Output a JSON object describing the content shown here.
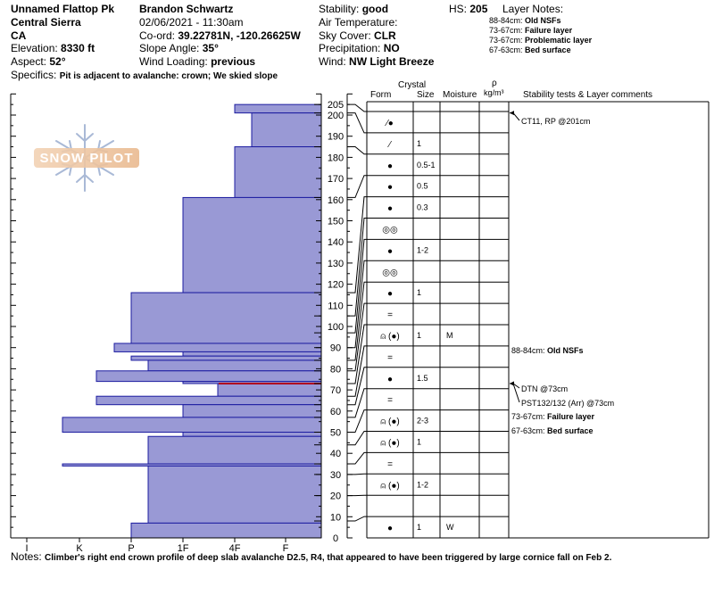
{
  "header": {
    "location": "Unnamed Flattop Pk",
    "range": "Central Sierra",
    "state": "CA",
    "elevation_label": "Elevation:",
    "elevation_value": "8330 ft",
    "aspect_label": "Aspect:",
    "aspect_value": "52°",
    "observer": "Brandon Schwartz",
    "datetime": "02/06/2021 - 11:30am",
    "coord_label": "Co-ord:",
    "coord_value": "39.22781N, -120.26625W",
    "slope_label": "Slope Angle:",
    "slope_value": "35°",
    "wind_loading_label": "Wind Loading:",
    "wind_loading_value": "previous",
    "stability_label": "Stability:",
    "stability_value": "good",
    "hs_label": "HS:",
    "hs_value": "205",
    "air_temp_label": "Air Temperature:",
    "sky_label": "Sky Cover:",
    "sky_value": "CLR",
    "precip_label": "Precipitation:",
    "precip_value": "NO",
    "wind_label": "Wind:",
    "wind_value": "NW Light Breeze",
    "specifics_label": "Specifics:",
    "specifics_value": "Pit is adjacent to avalanche: crown; We skied slope",
    "layer_notes_label": "Layer Notes:",
    "layer_notes": [
      {
        "range": "88-84cm:",
        "text": "Old NSFs"
      },
      {
        "range": "73-67cm:",
        "text": "Failure layer"
      },
      {
        "range": "73-67cm:",
        "text": "Problematic layer"
      },
      {
        "range": "67-63cm:",
        "text": "Bed surface"
      }
    ]
  },
  "column_headers": {
    "crystal": "Crystal",
    "form": "Form",
    "size": "Size",
    "moisture": "Moisture",
    "rho": "ρ",
    "density": "kg/m³",
    "stability": "Stability tests & Layer comments"
  },
  "watermark": "SNOW PILOT",
  "notes_label": "Notes:",
  "notes_value": "Climber's right end crown profile of deep slab avalanche D2.5, R4, that appeared to have been triggered by large cornice fall on Feb 2.",
  "colors": {
    "bar_fill": "#9999d5",
    "bar_stroke": "#1c1ca0",
    "failure_line": "#b00020"
  },
  "chart_data": {
    "type": "bar",
    "orientation": "horizontal",
    "title": "",
    "ylabel": "",
    "xlabel": "",
    "ylim": [
      0,
      210
    ],
    "x_scale": [
      "I",
      "K",
      "P",
      "1F",
      "4F",
      "F"
    ],
    "x_ticks": [
      "I",
      "K",
      "P",
      "1F",
      "4F",
      "F"
    ],
    "y_ticks": [
      0,
      10,
      20,
      30,
      40,
      50,
      60,
      70,
      80,
      90,
      100,
      110,
      120,
      130,
      140,
      150,
      160,
      170,
      180,
      190,
      200,
      205
    ],
    "hardness_profile": [
      {
        "top": 205,
        "bottom": 201,
        "hardness": "4F"
      },
      {
        "top": 201,
        "bottom": 185,
        "hardness": "4F+"
      },
      {
        "top": 185,
        "bottom": 161,
        "hardness": "4F"
      },
      {
        "top": 161,
        "bottom": 116,
        "hardness": "1F"
      },
      {
        "top": 116,
        "bottom": 92,
        "hardness": "P"
      },
      {
        "top": 92,
        "bottom": 88,
        "hardness": "P-"
      },
      {
        "top": 88,
        "bottom": 86,
        "hardness": "1F"
      },
      {
        "top": 86,
        "bottom": 84,
        "hardness": "P"
      },
      {
        "top": 84,
        "bottom": 79,
        "hardness": "P+"
      },
      {
        "top": 79,
        "bottom": 74,
        "hardness": "K+"
      },
      {
        "top": 74,
        "bottom": 73,
        "hardness": "1F"
      },
      {
        "top": 73,
        "bottom": 67,
        "hardness": "4F-"
      },
      {
        "top": 67,
        "bottom": 63,
        "hardness": "K+"
      },
      {
        "top": 63,
        "bottom": 57,
        "hardness": "1F"
      },
      {
        "top": 57,
        "bottom": 50,
        "hardness": "K-"
      },
      {
        "top": 50,
        "bottom": 48,
        "hardness": "1F"
      },
      {
        "top": 48,
        "bottom": 35,
        "hardness": "P+"
      },
      {
        "top": 35,
        "bottom": 34,
        "hardness": "K-"
      },
      {
        "top": 34,
        "bottom": 7,
        "hardness": "P+"
      },
      {
        "top": 7,
        "bottom": 0,
        "hardness": "P"
      }
    ],
    "failure_layer_cm": 73,
    "boundaries": [
      205,
      201,
      185,
      161,
      116,
      105,
      97,
      90,
      84,
      79,
      73,
      67,
      63,
      57,
      50,
      44,
      35,
      30,
      20,
      8
    ],
    "layers": [
      {
        "top": 205,
        "bottom": 201,
        "form": "⁄●",
        "size": "",
        "moisture": ""
      },
      {
        "top": 201,
        "bottom": 185,
        "form": "⁄",
        "size": "1",
        "moisture": ""
      },
      {
        "top": 185,
        "bottom": 161,
        "form": "●",
        "size": "0.5-1",
        "moisture": ""
      },
      {
        "top": 161,
        "bottom": 116,
        "form": "●",
        "size": "0.5",
        "moisture": ""
      },
      {
        "top": 116,
        "bottom": 105,
        "form": "●",
        "size": "0.3",
        "moisture": ""
      },
      {
        "top": 105,
        "bottom": 97,
        "form": "◎◎",
        "size": "",
        "moisture": ""
      },
      {
        "top": 97,
        "bottom": 90,
        "form": "●",
        "size": "1-2",
        "moisture": ""
      },
      {
        "top": 90,
        "bottom": 84,
        "form": "◎◎",
        "size": "",
        "moisture": ""
      },
      {
        "top": 84,
        "bottom": 79,
        "form": "●",
        "size": "1",
        "moisture": ""
      },
      {
        "top": 79,
        "bottom": 73,
        "form": "=",
        "size": "",
        "moisture": ""
      },
      {
        "top": 73,
        "bottom": 67,
        "form": "⍝ (●)",
        "size": "1",
        "moisture": "M"
      },
      {
        "top": 67,
        "bottom": 63,
        "form": "=",
        "size": "",
        "moisture": ""
      },
      {
        "top": 63,
        "bottom": 57,
        "form": "●",
        "size": "1.5",
        "moisture": ""
      },
      {
        "top": 57,
        "bottom": 50,
        "form": "=",
        "size": "",
        "moisture": ""
      },
      {
        "top": 50,
        "bottom": 44,
        "form": "⍝ (●)",
        "size": "2-3",
        "moisture": ""
      },
      {
        "top": 44,
        "bottom": 35,
        "form": "⍝ (●)",
        "size": "1",
        "moisture": ""
      },
      {
        "top": 35,
        "bottom": 30,
        "form": "=",
        "size": "",
        "moisture": ""
      },
      {
        "top": 30,
        "bottom": 20,
        "form": "⍝ (●)",
        "size": "1-2",
        "moisture": ""
      },
      {
        "top": 20,
        "bottom": 8,
        "form": "",
        "size": "",
        "moisture": ""
      },
      {
        "top": 8,
        "bottom": 0,
        "form": "●",
        "size": "1",
        "moisture": "W"
      }
    ],
    "comments": [
      {
        "text": "CT11, RP @201cm",
        "height": 201,
        "arrow": true,
        "bold_prefix": ""
      },
      {
        "text": "Old NSFs",
        "height": 88,
        "arrow": false,
        "bold_prefix": "88-84cm:"
      },
      {
        "text": "DTN @73cm",
        "height": 73,
        "arrow": true,
        "bold_prefix": ""
      },
      {
        "text": "PST132/132 (Arr) @73cm",
        "height": 73,
        "arrow": true,
        "bold_prefix": ""
      },
      {
        "text": "Failure layer",
        "height": 70,
        "arrow": false,
        "bold_prefix": "73-67cm:"
      },
      {
        "text": "Bed surface",
        "height": 65,
        "arrow": false,
        "bold_prefix": "67-63cm:"
      }
    ]
  }
}
